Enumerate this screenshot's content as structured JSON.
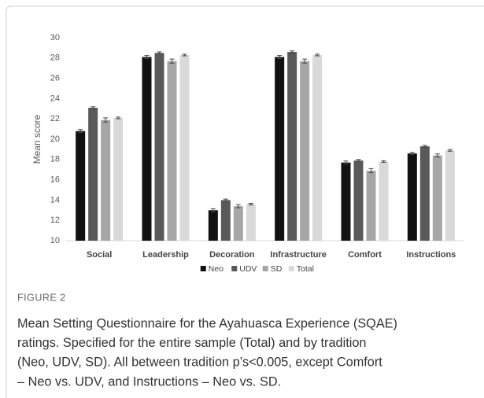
{
  "chart_data": {
    "type": "bar",
    "y_label": "Mean score",
    "categories": [
      "Social",
      "Leadership",
      "Decoration",
      "Infrastructure",
      "Comfort",
      "Instructions"
    ],
    "series": [
      {
        "name": "Neo",
        "color": "#111111",
        "values": [
          20.8,
          28.1,
          13.0,
          28.1,
          17.7,
          18.6
        ],
        "errors": [
          0.15,
          0.15,
          0.15,
          0.15,
          0.15,
          0.1
        ]
      },
      {
        "name": "UDV",
        "color": "#595959",
        "values": [
          23.1,
          28.5,
          14.0,
          28.6,
          17.9,
          19.3
        ],
        "errors": [
          0.1,
          0.1,
          0.1,
          0.1,
          0.1,
          0.1
        ]
      },
      {
        "name": "SD",
        "color": "#a6a6a6",
        "values": [
          21.9,
          27.7,
          13.4,
          27.7,
          16.9,
          18.4
        ],
        "errors": [
          0.2,
          0.2,
          0.15,
          0.2,
          0.2,
          0.15
        ]
      },
      {
        "name": "Total",
        "color": "#d9d9d9",
        "values": [
          22.1,
          28.3,
          13.6,
          28.3,
          17.8,
          18.9
        ],
        "errors": [
          0.08,
          0.08,
          0.08,
          0.08,
          0.08,
          0.08
        ]
      }
    ],
    "ylim": [
      10,
      30
    ],
    "yticks": [
      10,
      12,
      14,
      16,
      18,
      20,
      22,
      24,
      26,
      28,
      30
    ],
    "grid": false,
    "legend": "bottom"
  },
  "caption": {
    "label": "FIGURE 2",
    "lines": [
      "Mean Setting Questionnaire for the Ayahuasca Experience (SQAE)",
      "ratings. Specified for the entire sample (Total) and by tradition",
      "(Neo, UDV, SD). All between tradition p’s<0.005, except Comfort",
      "– Neo vs. UDV, and Instructions – Neo vs. SD."
    ]
  }
}
